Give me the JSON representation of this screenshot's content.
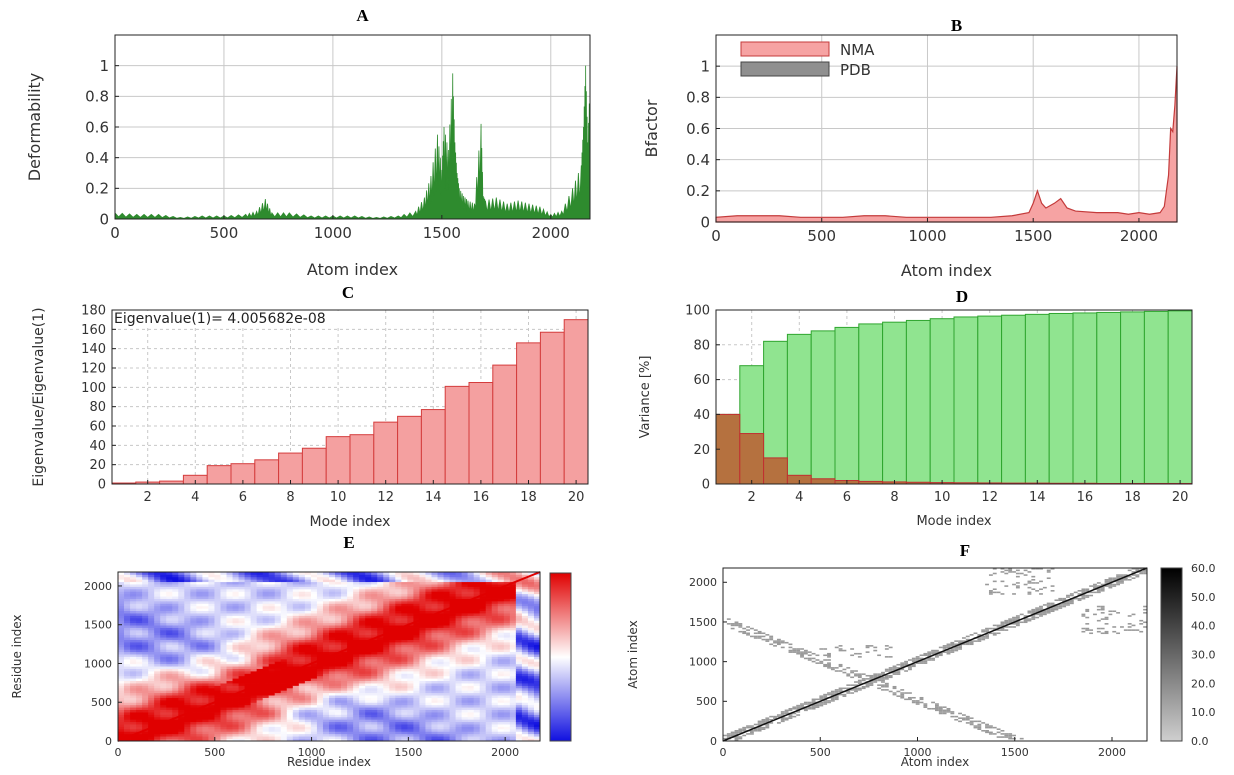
{
  "colors": {
    "deform": "#2e8b2e",
    "nma_fill": "#f6a3a3",
    "nma_line": "#c43b3b",
    "pdb_fill": "#8f8f8f",
    "eig_fill": "#f4a0a0",
    "eig_edge": "#d43c3c",
    "var_cum": "#90e490",
    "var_cum_edge": "#2fa52f",
    "var_ind": "#b5713f",
    "var_ind_edge": "#c03030",
    "grid": "#c8c8c8",
    "cov_pos": "#e00000",
    "cov_neg": "#1010e0",
    "map_cell": "#9a9a9a"
  },
  "chart_data": [
    {
      "panel_label": "A",
      "type": "area",
      "xlabel": "Atom index",
      "ylabel": "Deformability",
      "xlim": [
        0,
        2180
      ],
      "ylim": [
        0,
        1.2
      ],
      "xticks": [
        "0",
        "500",
        "1000",
        "1500",
        "2000"
      ],
      "xtick_values": [
        0,
        500,
        1000,
        1500,
        2000
      ],
      "yticks": [
        "0",
        "0.2",
        "0.4",
        "0.6",
        "0.8",
        "1"
      ],
      "ytick_values": [
        0,
        0.2,
        0.4,
        0.6,
        0.8,
        1
      ],
      "grid": true,
      "series": [
        {
          "x": [
            0,
            100,
            200,
            300,
            400,
            500,
            600,
            650,
            690,
            720,
            800,
            900,
            1000,
            1100,
            1200,
            1300,
            1380,
            1420,
            1450,
            1480,
            1500,
            1510,
            1530,
            1550,
            1560,
            1570,
            1580,
            1600,
            1620,
            1650,
            1680,
            1690,
            1700,
            1750,
            1800,
            1850,
            1900,
            1950,
            2000,
            2050,
            2100,
            2140,
            2150,
            2160,
            2170,
            2180
          ],
          "y": [
            0.04,
            0.03,
            0.03,
            0.01,
            0.02,
            0.02,
            0.03,
            0.05,
            0.13,
            0.04,
            0.04,
            0.02,
            0.02,
            0.02,
            0.01,
            0.02,
            0.05,
            0.14,
            0.28,
            0.55,
            0.32,
            0.6,
            0.45,
            0.95,
            0.5,
            0.3,
            0.2,
            0.15,
            0.12,
            0.1,
            0.62,
            0.15,
            0.12,
            0.14,
            0.1,
            0.12,
            0.1,
            0.08,
            0.03,
            0.05,
            0.2,
            0.35,
            0.6,
            1.0,
            0.5,
            0.88
          ]
        }
      ]
    },
    {
      "panel_label": "B",
      "type": "area",
      "xlabel": "Atom index",
      "ylabel": "Bfactor",
      "xlim": [
        0,
        2180
      ],
      "ylim": [
        0,
        1.2
      ],
      "xticks": [
        "0",
        "500",
        "1000",
        "1500",
        "2000"
      ],
      "xtick_values": [
        0,
        500,
        1000,
        1500,
        2000
      ],
      "yticks": [
        "0",
        "0.2",
        "0.4",
        "0.6",
        "0.8",
        "1"
      ],
      "ytick_values": [
        0,
        0.2,
        0.4,
        0.6,
        0.8,
        1
      ],
      "grid": true,
      "legend_position": "top-left",
      "legend": [
        "NMA",
        "PDB"
      ],
      "series": [
        {
          "name": "NMA",
          "x": [
            0,
            100,
            200,
            300,
            400,
            500,
            600,
            700,
            800,
            900,
            1000,
            1100,
            1200,
            1300,
            1400,
            1480,
            1500,
            1520,
            1540,
            1560,
            1600,
            1630,
            1660,
            1700,
            1800,
            1900,
            1950,
            2000,
            2050,
            2100,
            2120,
            2140,
            2150,
            2160,
            2170,
            2180
          ],
          "y": [
            0.03,
            0.04,
            0.04,
            0.04,
            0.03,
            0.03,
            0.03,
            0.04,
            0.04,
            0.03,
            0.03,
            0.03,
            0.03,
            0.03,
            0.04,
            0.06,
            0.12,
            0.2,
            0.12,
            0.09,
            0.12,
            0.15,
            0.09,
            0.07,
            0.06,
            0.06,
            0.05,
            0.06,
            0.05,
            0.06,
            0.1,
            0.3,
            0.6,
            0.58,
            0.75,
            1.0
          ]
        }
      ]
    },
    {
      "panel_label": "C",
      "type": "bar",
      "xlabel": "Mode index",
      "ylabel": "Eigenvalue/Eigenvalue(1)",
      "annotation": "Eigenvalue(1)= 4.005682e-08",
      "xlim": [
        0.5,
        20.5
      ],
      "ylim": [
        0,
        180
      ],
      "xticks": [
        "2",
        "4",
        "6",
        "8",
        "10",
        "12",
        "14",
        "16",
        "18",
        "20"
      ],
      "xtick_values": [
        2,
        4,
        6,
        8,
        10,
        12,
        14,
        16,
        18,
        20
      ],
      "yticks": [
        "0",
        "20",
        "40",
        "60",
        "80",
        "100",
        "120",
        "140",
        "160",
        "180"
      ],
      "ytick_values": [
        0,
        20,
        40,
        60,
        80,
        100,
        120,
        140,
        160,
        180
      ],
      "grid": true,
      "categories": [
        1,
        2,
        3,
        4,
        5,
        6,
        7,
        8,
        9,
        10,
        11,
        12,
        13,
        14,
        15,
        16,
        17,
        18,
        19,
        20
      ],
      "values": [
        1,
        2,
        3,
        9,
        19,
        21,
        25,
        32,
        37,
        49,
        51,
        64,
        70,
        77,
        101,
        105,
        123,
        146,
        157,
        170
      ]
    },
    {
      "panel_label": "D",
      "type": "bar",
      "xlabel": "Mode index",
      "ylabel": "Variance [%]",
      "xlim": [
        0.5,
        20.5
      ],
      "ylim": [
        0,
        100
      ],
      "xticks": [
        "2",
        "4",
        "6",
        "8",
        "10",
        "12",
        "14",
        "16",
        "18",
        "20"
      ],
      "xtick_values": [
        2,
        4,
        6,
        8,
        10,
        12,
        14,
        16,
        18,
        20
      ],
      "yticks": [
        "0",
        "20",
        "40",
        "60",
        "80",
        "100"
      ],
      "ytick_values": [
        0,
        20,
        40,
        60,
        80,
        100
      ],
      "grid": true,
      "categories": [
        1,
        2,
        3,
        4,
        5,
        6,
        7,
        8,
        9,
        10,
        11,
        12,
        13,
        14,
        15,
        16,
        17,
        18,
        19,
        20
      ],
      "series": [
        {
          "values": [
            40,
            68,
            82,
            86,
            88,
            90,
            92,
            93,
            94,
            95,
            96,
            96.5,
            97,
            97.5,
            98,
            98.3,
            98.6,
            98.9,
            99.2,
            99.5
          ]
        },
        {
          "values": [
            40,
            29,
            15,
            5,
            3,
            2,
            1.5,
            1.2,
            1,
            0.8,
            0.7,
            0.6,
            0.5,
            0.5,
            0.4,
            0.4,
            0.3,
            0.3,
            0.3,
            0.3
          ]
        }
      ]
    },
    {
      "panel_label": "E",
      "type": "heatmap",
      "xlabel": "Residue index",
      "ylabel": "Residue index",
      "xlim": [
        0,
        2180
      ],
      "ylim": [
        0,
        2180
      ],
      "xticks": [
        "0",
        "500",
        "1000",
        "1500",
        "2000"
      ],
      "xtick_values": [
        0,
        500,
        1000,
        1500,
        2000
      ],
      "yticks": [
        "0",
        "500",
        "1000",
        "1500",
        "2000"
      ],
      "ytick_values": [
        0,
        500,
        1000,
        1500,
        2000
      ],
      "colorbar": {
        "from": "#1010e0",
        "mid": "#ffffff",
        "to": "#e00000"
      }
    },
    {
      "panel_label": "F",
      "type": "heatmap",
      "xlabel": "Atom index",
      "ylabel": "Atom index",
      "xlim": [
        0,
        2180
      ],
      "ylim": [
        0,
        2180
      ],
      "xticks": [
        "0",
        "500",
        "1000",
        "1500",
        "2000"
      ],
      "xtick_values": [
        0,
        500,
        1000,
        1500,
        2000
      ],
      "yticks": [
        "0",
        "500",
        "1000",
        "1500",
        "2000"
      ],
      "ytick_values": [
        0,
        500,
        1000,
        1500,
        2000
      ],
      "colorbar": {
        "ticks": [
          "0.0",
          "10.0",
          "20.0",
          "30.0",
          "40.0",
          "50.0",
          "60.0"
        ],
        "tick_values": [
          0,
          10,
          20,
          30,
          40,
          50,
          60
        ],
        "range": [
          0,
          60
        ]
      }
    }
  ]
}
